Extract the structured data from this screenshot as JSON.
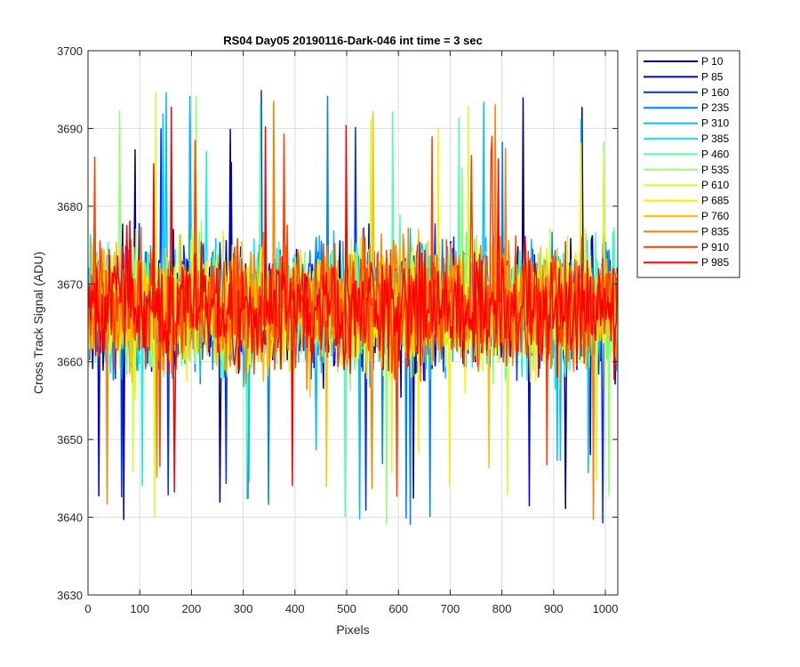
{
  "chart_data": {
    "type": "line",
    "title": "RS04 Day05 20190116-Dark-046 int time = 3 sec",
    "xlabel": "Pixels",
    "ylabel": "Cross Track Signal (ADU)",
    "xlim": [
      0,
      1024
    ],
    "ylim": [
      3630,
      3700
    ],
    "xticks": [
      0,
      100,
      200,
      300,
      400,
      500,
      600,
      700,
      800,
      900,
      1000
    ],
    "yticks": [
      3630,
      3640,
      3650,
      3660,
      3670,
      3680,
      3690,
      3700
    ],
    "xtick_labels": [
      "0",
      "100",
      "200",
      "300",
      "400",
      "500",
      "600",
      "700",
      "800",
      "900",
      "1000"
    ],
    "ytick_labels": [
      "3630",
      "3640",
      "3650",
      "3660",
      "3670",
      "3680",
      "3690",
      "3700"
    ],
    "grid": true,
    "legend_position": "outside-top-right",
    "x": {
      "start": 1,
      "end": 1024,
      "step": 1
    },
    "noise_model": {
      "mean": 3667,
      "stdev": 6.5,
      "min": 3639,
      "max": 3696
    },
    "series": [
      {
        "name": "P 10",
        "color": "#00008f"
      },
      {
        "name": "P 85",
        "color": "#0000df"
      },
      {
        "name": "P 160",
        "color": "#0030ff"
      },
      {
        "name": "P 235",
        "color": "#0080ff"
      },
      {
        "name": "P 310",
        "color": "#00c0ff"
      },
      {
        "name": "P 385",
        "color": "#10f0ef"
      },
      {
        "name": "P 460",
        "color": "#50ffaf"
      },
      {
        "name": "P 535",
        "color": "#90ff6f"
      },
      {
        "name": "P 610",
        "color": "#cfff30"
      },
      {
        "name": "P 685",
        "color": "#ffef00"
      },
      {
        "name": "P 760",
        "color": "#ffbf00"
      },
      {
        "name": "P 835",
        "color": "#ff7f00"
      },
      {
        "name": "P 910",
        "color": "#ff3f00"
      },
      {
        "name": "P 985",
        "color": "#ff0000"
      }
    ]
  }
}
